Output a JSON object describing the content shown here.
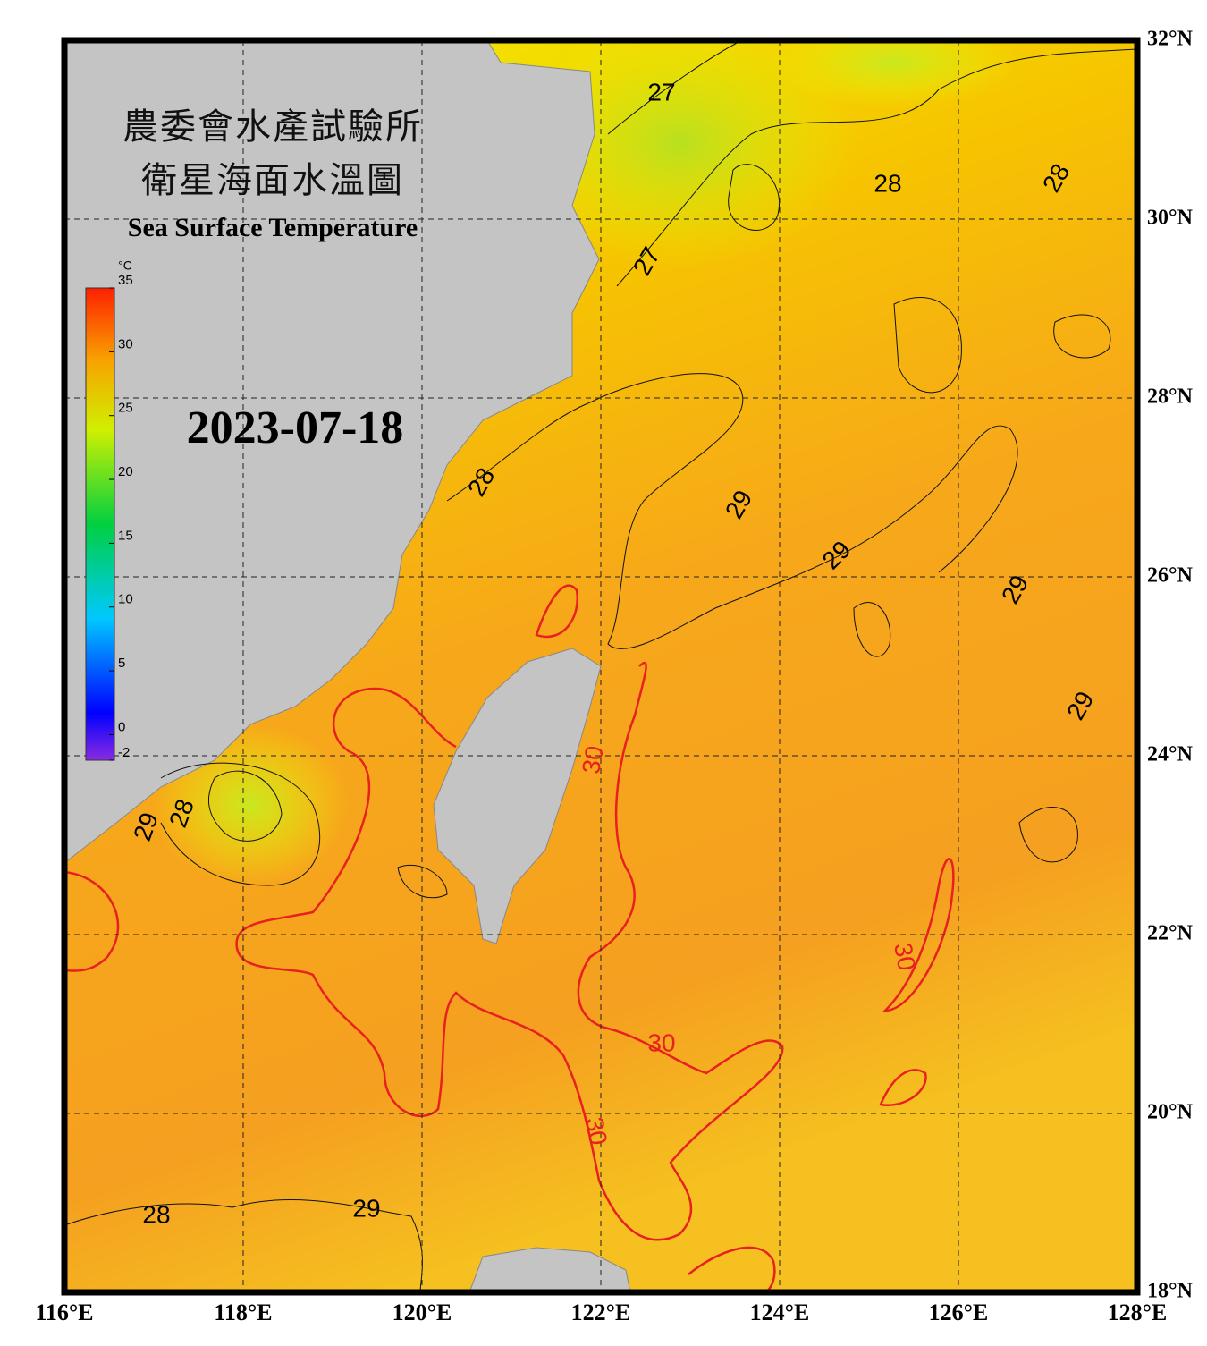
{
  "header": {
    "title_zh_1": "農委會水產試驗所",
    "title_zh_2": "衛星海面水溫圖",
    "title_en": "Sea Surface Temperature",
    "date": "2023-07-18"
  },
  "colorbar": {
    "unit": "°C",
    "range": [
      -2,
      35
    ],
    "ticks": [
      35,
      30,
      25,
      20,
      15,
      10,
      5,
      0,
      -2
    ]
  },
  "map": {
    "grid": true,
    "xlim": [
      116,
      128
    ],
    "ylim": [
      18,
      32
    ],
    "xticks": [
      {
        "value": 116,
        "label": "116°E"
      },
      {
        "value": 118,
        "label": "118°E"
      },
      {
        "value": 120,
        "label": "120°E"
      },
      {
        "value": 122,
        "label": "122°E"
      },
      {
        "value": 124,
        "label": "124°E"
      },
      {
        "value": 126,
        "label": "126°E"
      },
      {
        "value": 128,
        "label": "128°E"
      }
    ],
    "yticks": [
      {
        "value": 18,
        "label": "18°N"
      },
      {
        "value": 20,
        "label": "20°N"
      },
      {
        "value": 22,
        "label": "22°N"
      },
      {
        "value": 24,
        "label": "24°N"
      },
      {
        "value": 26,
        "label": "26°N"
      },
      {
        "value": 28,
        "label": "28°N"
      },
      {
        "value": 30,
        "label": "30°N"
      },
      {
        "value": 32,
        "label": "32°N"
      }
    ],
    "contour_labels": [
      27,
      28,
      28,
      27,
      28,
      29,
      29,
      29,
      29,
      30,
      28,
      29,
      30,
      30,
      30,
      28,
      29
    ]
  }
}
